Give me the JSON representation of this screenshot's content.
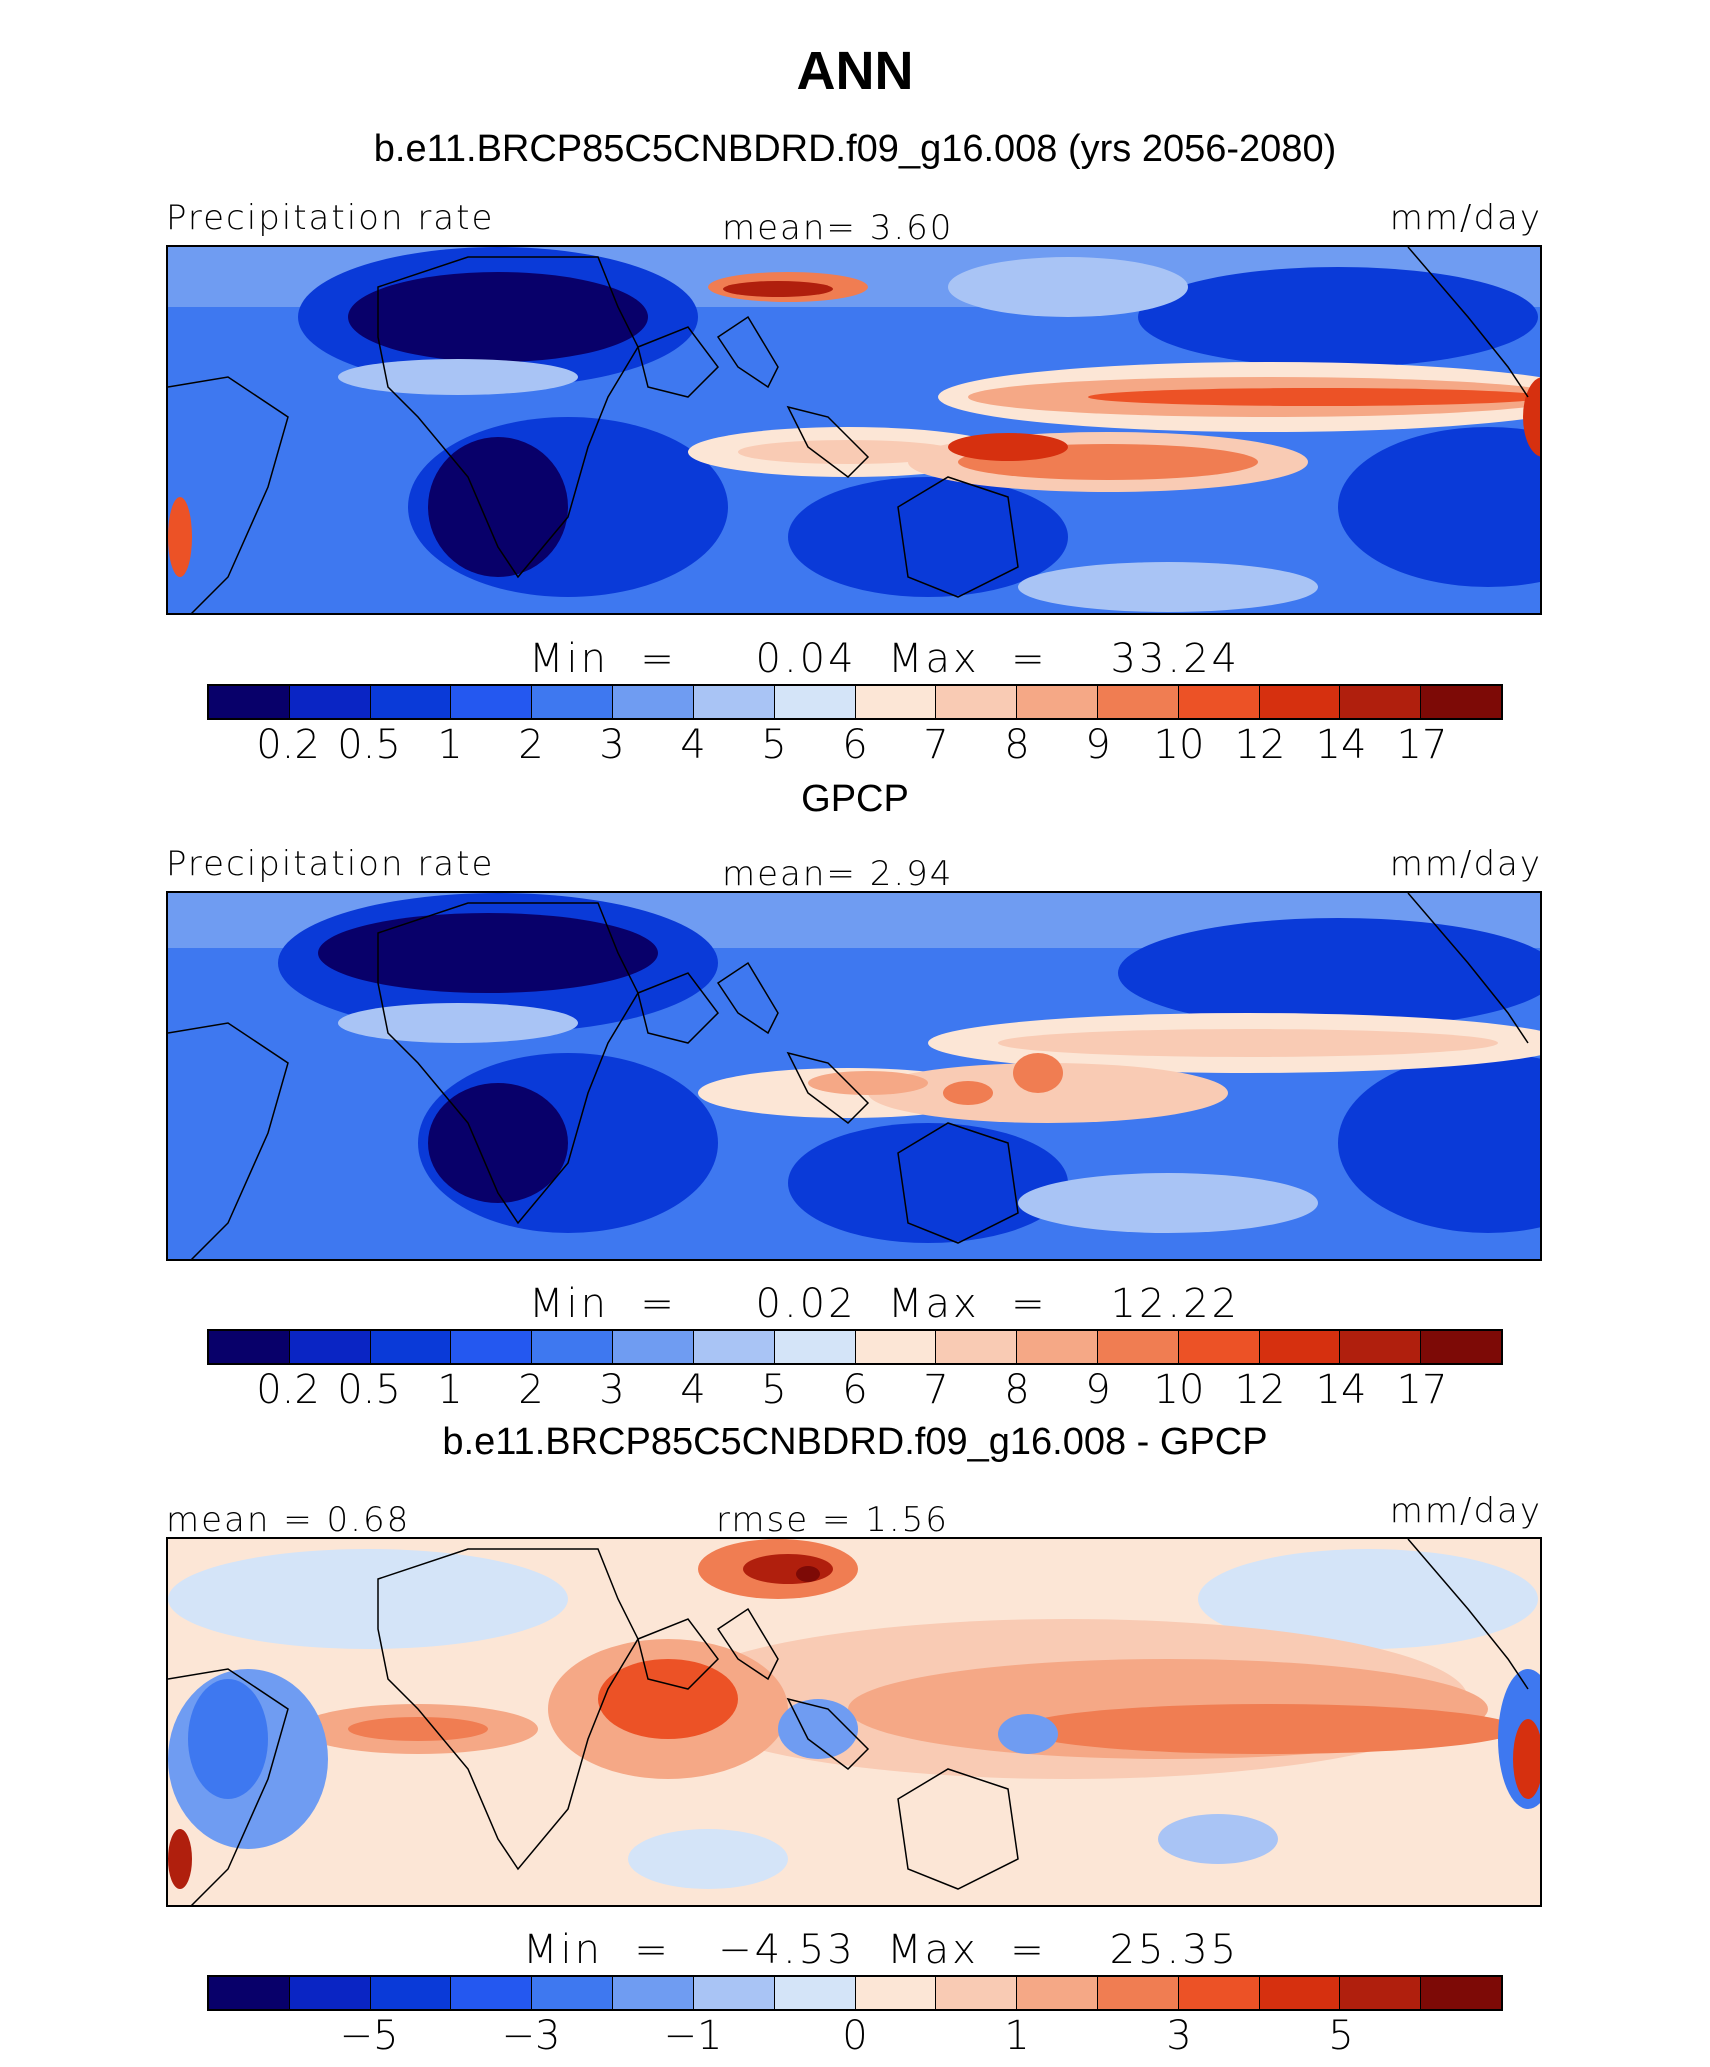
{
  "title": "ANN",
  "colors": {
    "scale": [
      "#08006a",
      "#0a25c4",
      "#0a3ad8",
      "#2458f0",
      "#3e78f0",
      "#6f9cf2",
      "#a9c4f5",
      "#d4e4f8",
      "#fce6d6",
      "#f9cbb4",
      "#f5a886",
      "#f07d52",
      "#ec5226",
      "#d6300f",
      "#b01f0d",
      "#7d0a06"
    ]
  },
  "panels": [
    {
      "id": "model",
      "case_title": "b.e11.BRCP85C5CNBDRD.f09_g16.008 (yrs 2056-2080)",
      "left_label": "Precipitation rate",
      "center_label": "mean=    3.60",
      "right_label": "mm/day",
      "minmax": "Min  =     0.04  Max  =    33.24",
      "ticks": [
        "0.2",
        "0.5",
        "1",
        "2",
        "3",
        "4",
        "5",
        "6",
        "7",
        "8",
        "9",
        "10",
        "12",
        "14",
        "17"
      ]
    },
    {
      "id": "obs",
      "case_title": "GPCP",
      "left_label": "Precipitation rate",
      "center_label": "mean=    2.94",
      "right_label": "mm/day",
      "minmax": "Min  =     0.02  Max  =    12.22",
      "ticks": [
        "0.2",
        "0.5",
        "1",
        "2",
        "3",
        "4",
        "5",
        "6",
        "7",
        "8",
        "9",
        "10",
        "12",
        "14",
        "17"
      ]
    },
    {
      "id": "diff",
      "case_title": "b.e11.BRCP85C5CNBDRD.f09_g16.008 - GPCP",
      "left_label": "mean  =    0.68",
      "center_label": "rmse  =    1.56",
      "right_label": "mm/day",
      "minmax": "Min  =   −4.53  Max  =    25.35",
      "ticks": [
        "−5",
        "−3",
        "−1",
        "0",
        "1",
        "3",
        "5"
      ]
    }
  ]
}
